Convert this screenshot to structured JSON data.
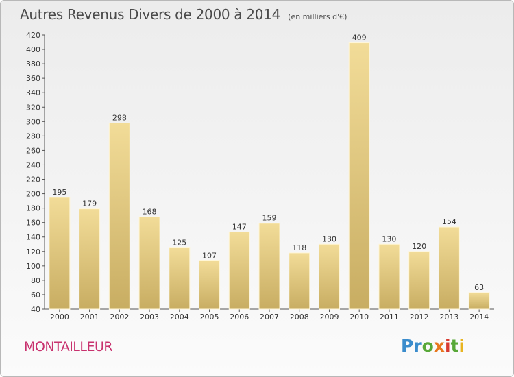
{
  "header": {
    "title": "Autres Revenus Divers de 2000 à 2014",
    "subtitle": "(en milliers d'€)"
  },
  "footer": {
    "commune": "MONTAILLEUR",
    "brand": "Proxiti",
    "brand_letters": [
      "P",
      "r",
      "o",
      "x",
      "i",
      "t",
      "i"
    ]
  },
  "colors": {
    "bar_light": "#f2dc98",
    "bar_dark": "#c8ad62",
    "commune_text": "#c8326e"
  },
  "chart_data": {
    "type": "bar",
    "title": "Autres Revenus Divers de 2000 à 2014",
    "subtitle": "(en milliers d'€)",
    "categories": [
      "2000",
      "2001",
      "2002",
      "2003",
      "2004",
      "2005",
      "2006",
      "2007",
      "2008",
      "2009",
      "2010",
      "2011",
      "2012",
      "2013",
      "2014"
    ],
    "values": [
      195,
      179,
      298,
      168,
      125,
      107,
      147,
      159,
      118,
      130,
      409,
      130,
      120,
      154,
      63
    ],
    "ylim": [
      40,
      420
    ],
    "yticks": [
      40,
      60,
      80,
      100,
      120,
      140,
      160,
      180,
      200,
      220,
      240,
      260,
      280,
      300,
      320,
      340,
      360,
      380,
      400,
      420
    ],
    "grid": false,
    "legend": "none",
    "data_labels": true
  }
}
